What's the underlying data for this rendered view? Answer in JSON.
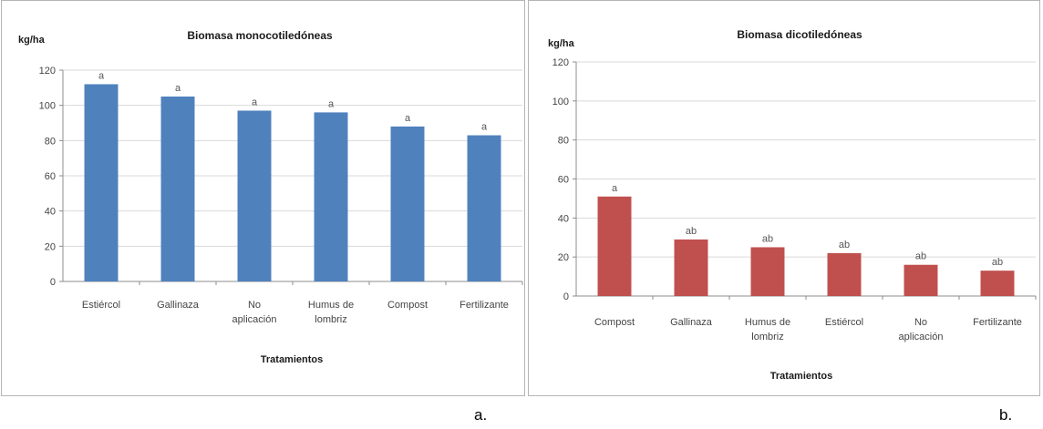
{
  "chart_data": [
    {
      "type": "bar",
      "title": "Biomasa monocotiledóneas",
      "ylabel": "kg/ha",
      "xlabel": "Tratamientos",
      "panel_letter": "a.",
      "categories": [
        "Estiércol",
        "Gallinaza",
        "No aplicación",
        "Humus de lombriz",
        "Compost",
        "Fertilizante"
      ],
      "values": [
        112,
        105,
        97,
        96,
        88,
        83
      ],
      "data_labels": [
        "a",
        "a",
        "a",
        "a",
        "a",
        "a"
      ],
      "ylim": [
        0,
        120
      ],
      "ytick_step": 20,
      "color": "#4f81bd",
      "grid": true,
      "legend": false
    },
    {
      "type": "bar",
      "title": "Biomasa dicotiledóneas",
      "ylabel": "kg/ha",
      "xlabel": "Tratamientos",
      "panel_letter": "b.",
      "categories": [
        "Compost",
        "Gallinaza",
        "Humus de lombriz",
        "Estiércol",
        "No aplicación",
        "Fertilizante"
      ],
      "values": [
        51,
        29,
        25,
        22,
        16,
        13
      ],
      "data_labels": [
        "a",
        "ab",
        "ab",
        "ab",
        "ab",
        "ab"
      ],
      "ylim": [
        0,
        120
      ],
      "ytick_step": 20,
      "color": "#c0504d",
      "grid": true,
      "legend": false
    }
  ]
}
